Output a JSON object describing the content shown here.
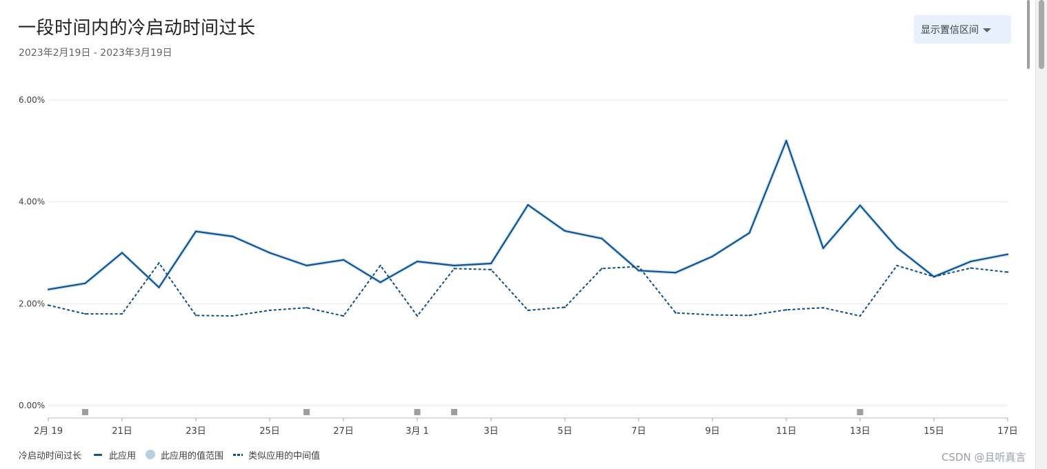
{
  "header": {
    "title": "一段时间内的冷启动时间过长",
    "date_range": "2023年2月19日 - 2023年3月19日",
    "ci_button_label": "显示置信区间"
  },
  "legend": {
    "title": "冷启动时间过长",
    "items": [
      {
        "label": "此应用",
        "kind": "line"
      },
      {
        "label": "此应用的值范围",
        "kind": "range"
      },
      {
        "label": "类似应用的中间值",
        "kind": "dashed"
      }
    ]
  },
  "watermark": "CSDN @且听真言",
  "colors": {
    "this_app": "#0b5394",
    "peer_median": "#0b4f7c",
    "range": "#b8cfe0",
    "grid": "#e6e6e6",
    "marker": "#9e9e9e"
  },
  "chart_data": {
    "type": "line",
    "x": [
      "2月19",
      "20日",
      "21日",
      "22日",
      "23日",
      "24日",
      "25日",
      "26日",
      "27日",
      "28日",
      "3月1",
      "2日",
      "3日",
      "4日",
      "5日",
      "6日",
      "7日",
      "8日",
      "9日",
      "10日",
      "11日",
      "12日",
      "13日",
      "14日",
      "15日",
      "16日",
      "17日"
    ],
    "x_tick_labels": [
      "2月 19",
      "21日",
      "23日",
      "25日",
      "27日",
      "3月 1",
      "3日",
      "5日",
      "7日",
      "9日",
      "11日",
      "13日",
      "15日",
      "17日"
    ],
    "y_tick_labels": [
      "0.00%",
      "2.00%",
      "4.00%",
      "6.00%"
    ],
    "ylim": [
      0,
      6
    ],
    "series": [
      {
        "name": "此应用",
        "style": "solid",
        "values": [
          2.28,
          2.4,
          3.0,
          2.32,
          3.42,
          3.32,
          3.0,
          2.75,
          2.86,
          2.42,
          2.83,
          2.75,
          2.79,
          3.94,
          3.43,
          3.28,
          2.65,
          2.61,
          2.93,
          3.39,
          5.2,
          3.09,
          3.93,
          3.1,
          2.53,
          2.83,
          2.97
        ]
      },
      {
        "name": "类似应用的中间值",
        "style": "dashed",
        "values": [
          1.97,
          1.8,
          1.8,
          2.8,
          1.77,
          1.76,
          1.87,
          1.92,
          1.76,
          2.75,
          1.76,
          2.69,
          2.67,
          1.87,
          1.93,
          2.69,
          2.73,
          1.82,
          1.78,
          1.77,
          1.88,
          1.92,
          1.76,
          2.75,
          2.53,
          2.7,
          2.62
        ]
      }
    ],
    "event_markers_x": [
      "20日",
      "26日",
      "3月1",
      "2日",
      "13日"
    ]
  }
}
